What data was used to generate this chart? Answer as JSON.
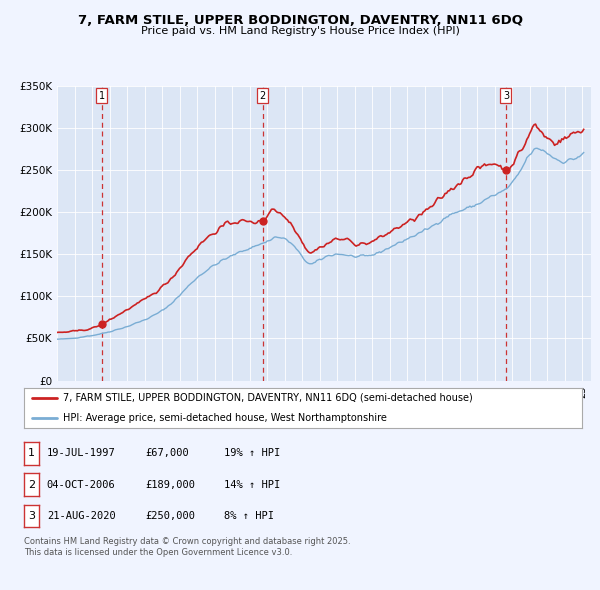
{
  "title": "7, FARM STILE, UPPER BODDINGTON, DAVENTRY, NN11 6DQ",
  "subtitle": "Price paid vs. HM Land Registry's House Price Index (HPI)",
  "background_color": "#f0f4ff",
  "plot_bg_color": "#dce6f5",
  "ylim": [
    0,
    350000
  ],
  "yticks": [
    0,
    50000,
    100000,
    150000,
    200000,
    250000,
    300000,
    350000
  ],
  "ytick_labels": [
    "£0",
    "£50K",
    "£100K",
    "£150K",
    "£200K",
    "£250K",
    "£300K",
    "£350K"
  ],
  "xlim_start": 1995.0,
  "xlim_end": 2025.5,
  "sale_dates_decimal": [
    1997.55,
    2006.75,
    2020.64
  ],
  "sale_prices": [
    67000,
    189000,
    250000
  ],
  "sale_labels": [
    "1",
    "2",
    "3"
  ],
  "vline_color": "#cc3333",
  "hpi_line_color": "#7aadd4",
  "price_line_color": "#cc2222",
  "legend_label_price": "7, FARM STILE, UPPER BODDINGTON, DAVENTRY, NN11 6DQ (semi-detached house)",
  "legend_label_hpi": "HPI: Average price, semi-detached house, West Northamptonshire",
  "table_rows": [
    [
      "1",
      "19-JUL-1997",
      "£67,000",
      "19% ↑ HPI"
    ],
    [
      "2",
      "04-OCT-2006",
      "£189,000",
      "14% ↑ HPI"
    ],
    [
      "3",
      "21-AUG-2020",
      "£250,000",
      "8% ↑ HPI"
    ]
  ],
  "footnote": "Contains HM Land Registry data © Crown copyright and database right 2025.\nThis data is licensed under the Open Government Licence v3.0."
}
